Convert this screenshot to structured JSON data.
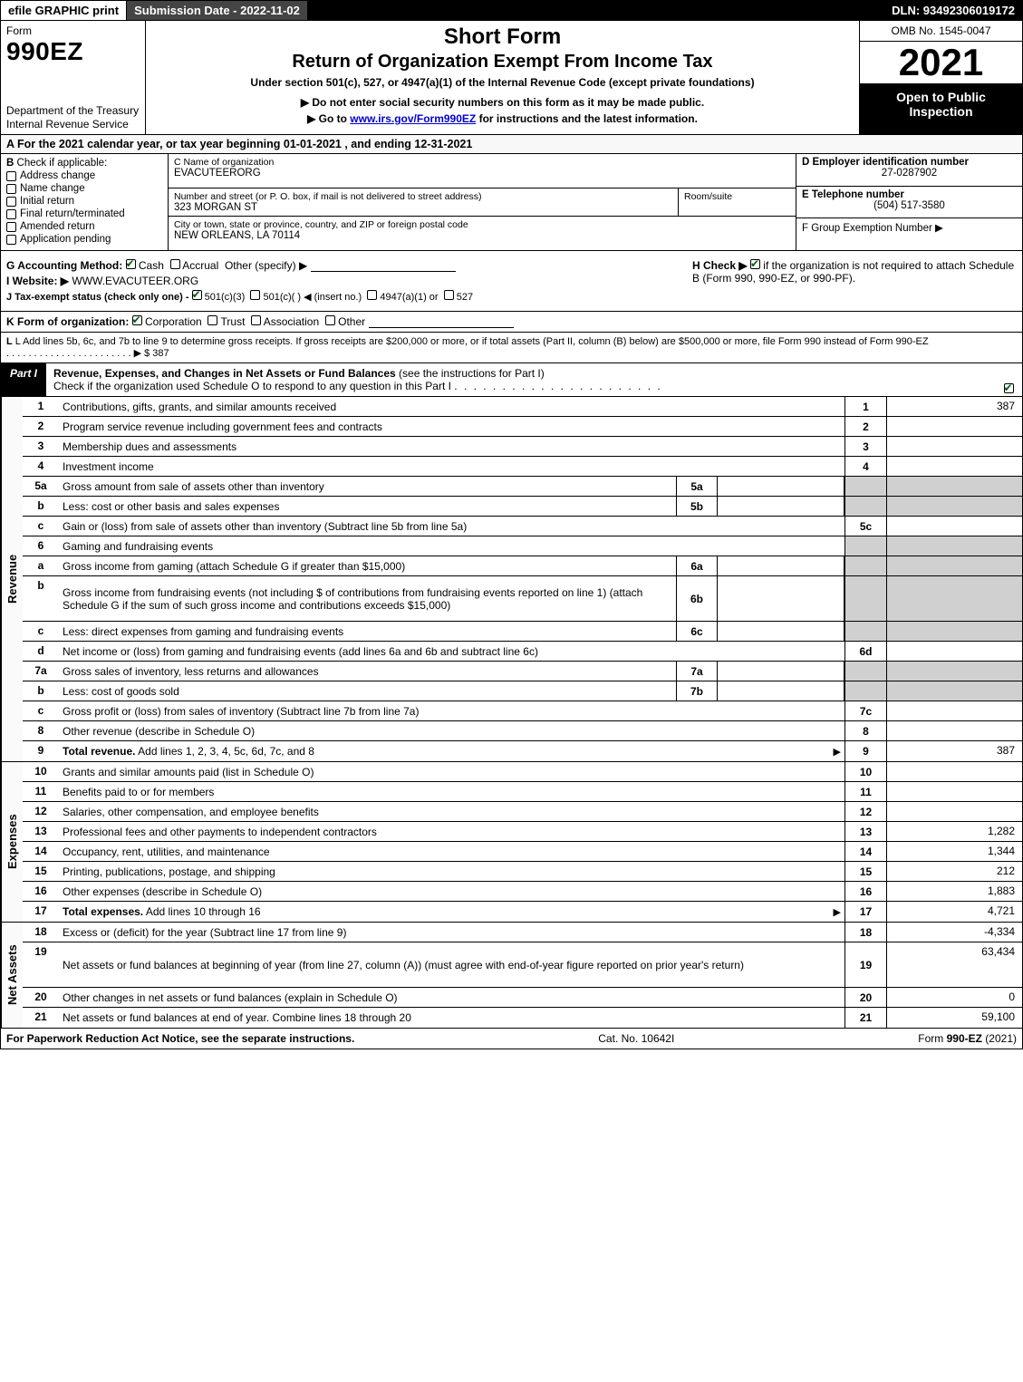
{
  "colors": {
    "black": "#000000",
    "white": "#ffffff",
    "dark_gray": "#444444",
    "shade_gray": "#d0d0d0",
    "check_green": "#0a5c16",
    "link_blue": "#0000cc",
    "vert_bg": "#fafafa"
  },
  "typography": {
    "body_fontsize": 12,
    "form_no_fontsize": 28,
    "short_form_fontsize": 24,
    "main_title_fontsize": 20,
    "year_fontsize": 42,
    "small_fontsize": 11
  },
  "topbar": {
    "efile": "efile GRAPHIC print",
    "submission_label": "Submission Date - 2022-11-02",
    "dln": "DLN: 93492306019172"
  },
  "header": {
    "form_word": "Form",
    "form_no": "990EZ",
    "dept": "Department of the Treasury\nInternal Revenue Service",
    "short_form": "Short Form",
    "main_title": "Return of Organization Exempt From Income Tax",
    "subtitle": "Under section 501(c), 527, or 4947(a)(1) of the Internal Revenue Code (except private foundations)",
    "instr1": "▶ Do not enter social security numbers on this form as it may be made public.",
    "instr2_pre": "▶ Go to ",
    "instr2_link": "www.irs.gov/Form990EZ",
    "instr2_post": " for instructions and the latest information.",
    "omb": "OMB No. 1545-0047",
    "year": "2021",
    "inspection": "Open to Public Inspection"
  },
  "rowA": "A  For the 2021 calendar year, or tax year beginning 01-01-2021 , and ending 12-31-2021",
  "B": {
    "label": "B",
    "check_if": "Check if applicable:",
    "items": [
      {
        "label": "Address change",
        "checked": false
      },
      {
        "label": "Name change",
        "checked": false
      },
      {
        "label": "Initial return",
        "checked": false
      },
      {
        "label": "Final return/terminated",
        "checked": false
      },
      {
        "label": "Amended return",
        "checked": false
      },
      {
        "label": "Application pending",
        "checked": false
      }
    ]
  },
  "C": {
    "name_label": "C Name of organization",
    "name": "EVACUTEERORG",
    "street_label": "Number and street (or P. O. box, if mail is not delivered to street address)",
    "street": "323 MORGAN ST",
    "room_label": "Room/suite",
    "room": "",
    "city_label": "City or town, state or province, country, and ZIP or foreign postal code",
    "city": "NEW ORLEANS, LA  70114"
  },
  "D": {
    "ein_label": "D Employer identification number",
    "ein": "27-0287902",
    "phone_label": "E Telephone number",
    "phone": "(504) 517-3580",
    "group_label": "F Group Exemption Number  ▶",
    "group": ""
  },
  "G": {
    "label": "G Accounting Method:",
    "cash": "Cash",
    "accrual": "Accrual",
    "other": "Other (specify) ▶",
    "cash_checked": true,
    "accrual_checked": false
  },
  "H": {
    "text1": "H  Check ▶",
    "checked": true,
    "text2": "if the organization is not required to attach Schedule B (Form 990, 990-EZ, or 990-PF)."
  },
  "I": {
    "label": "I Website: ▶",
    "value": "WWW.EVACUTEER.ORG"
  },
  "J": {
    "pre": "J Tax-exempt status (check only one) -",
    "o1": "501(c)(3)",
    "o1_checked": true,
    "o2": "501(c)(  ) ◀ (insert no.)",
    "o3": "4947(a)(1) or",
    "o4": "527"
  },
  "K": {
    "pre": "K Form of organization:",
    "corp": "Corporation",
    "corp_checked": true,
    "trust": "Trust",
    "assoc": "Association",
    "other": "Other"
  },
  "L": {
    "text": "L Add lines 5b, 6c, and 7b to line 9 to determine gross receipts. If gross receipts are $200,000 or more, or if total assets (Part II, column (B) below) are $500,000 or more, file Form 990 instead of Form 990-EZ",
    "amount_label": "▶ $",
    "amount": "387"
  },
  "partI": {
    "tag": "Part I",
    "title1": "Revenue, Expenses, and Changes in Net Assets or Fund Balances",
    "title2": "(see the instructions for Part I)",
    "sub": "Check if the organization used Schedule O to respond to any question in this Part I",
    "checked": true
  },
  "sections": {
    "revenue": {
      "label": "Revenue",
      "rows": [
        {
          "n": "1",
          "d": "Contributions, gifts, grants, and similar amounts received",
          "ref": "1",
          "amt": "387"
        },
        {
          "n": "2",
          "d": "Program service revenue including government fees and contracts",
          "ref": "2",
          "amt": ""
        },
        {
          "n": "3",
          "d": "Membership dues and assessments",
          "ref": "3",
          "amt": ""
        },
        {
          "n": "4",
          "d": "Investment income",
          "ref": "4",
          "amt": ""
        },
        {
          "n": "5a",
          "d": "Gross amount from sale of assets other than inventory",
          "ib": "5a",
          "iv": "",
          "shade": true
        },
        {
          "n": "b",
          "d": "Less: cost or other basis and sales expenses",
          "ib": "5b",
          "iv": "",
          "shade": true
        },
        {
          "n": "c",
          "d": "Gain or (loss) from sale of assets other than inventory (Subtract line 5b from line 5a)",
          "ref": "5c",
          "amt": ""
        },
        {
          "n": "6",
          "d": "Gaming and fundraising events",
          "shade": true,
          "noamt": true
        },
        {
          "n": "a",
          "d": "Gross income from gaming (attach Schedule G if greater than $15,000)",
          "ib": "6a",
          "iv": "",
          "shade": true
        },
        {
          "n": "b",
          "d": "Gross income from fundraising events (not including $                   of contributions from fundraising events reported on line 1) (attach Schedule G if the sum of such gross income and contributions exceeds $15,000)",
          "ib": "6b",
          "iv": "",
          "shade": true,
          "tall": true
        },
        {
          "n": "c",
          "d": "Less: direct expenses from gaming and fundraising events",
          "ib": "6c",
          "iv": "",
          "shade": true
        },
        {
          "n": "d",
          "d": "Net income or (loss) from gaming and fundraising events (add lines 6a and 6b and subtract line 6c)",
          "ref": "6d",
          "amt": ""
        },
        {
          "n": "7a",
          "d": "Gross sales of inventory, less returns and allowances",
          "ib": "7a",
          "iv": "",
          "shade": true
        },
        {
          "n": "b",
          "d": "Less: cost of goods sold",
          "ib": "7b",
          "iv": "",
          "shade": true
        },
        {
          "n": "c",
          "d": "Gross profit or (loss) from sales of inventory (Subtract line 7b from line 7a)",
          "ref": "7c",
          "amt": ""
        },
        {
          "n": "8",
          "d": "Other revenue (describe in Schedule O)",
          "ref": "8",
          "amt": ""
        },
        {
          "n": "9",
          "d": "Total revenue. Add lines 1, 2, 3, 4, 5c, 6d, 7c, and 8",
          "ref": "9",
          "amt": "387",
          "bold": true,
          "arrow": true
        }
      ]
    },
    "expenses": {
      "label": "Expenses",
      "rows": [
        {
          "n": "10",
          "d": "Grants and similar amounts paid (list in Schedule O)",
          "ref": "10",
          "amt": ""
        },
        {
          "n": "11",
          "d": "Benefits paid to or for members",
          "ref": "11",
          "amt": ""
        },
        {
          "n": "12",
          "d": "Salaries, other compensation, and employee benefits",
          "ref": "12",
          "amt": ""
        },
        {
          "n": "13",
          "d": "Professional fees and other payments to independent contractors",
          "ref": "13",
          "amt": "1,282"
        },
        {
          "n": "14",
          "d": "Occupancy, rent, utilities, and maintenance",
          "ref": "14",
          "amt": "1,344"
        },
        {
          "n": "15",
          "d": "Printing, publications, postage, and shipping",
          "ref": "15",
          "amt": "212"
        },
        {
          "n": "16",
          "d": "Other expenses (describe in Schedule O)",
          "ref": "16",
          "amt": "1,883"
        },
        {
          "n": "17",
          "d": "Total expenses. Add lines 10 through 16",
          "ref": "17",
          "amt": "4,721",
          "bold": true,
          "arrow": true
        }
      ]
    },
    "netassets": {
      "label": "Net Assets",
      "rows": [
        {
          "n": "18",
          "d": "Excess or (deficit) for the year (Subtract line 17 from line 9)",
          "ref": "18",
          "amt": "-4,334"
        },
        {
          "n": "19",
          "d": "Net assets or fund balances at beginning of year (from line 27, column (A)) (must agree with end-of-year figure reported on prior year's return)",
          "ref": "19",
          "amt": "63,434",
          "tall": true
        },
        {
          "n": "20",
          "d": "Other changes in net assets or fund balances (explain in Schedule O)",
          "ref": "20",
          "amt": "0"
        },
        {
          "n": "21",
          "d": "Net assets or fund balances at end of year. Combine lines 18 through 20",
          "ref": "21",
          "amt": "59,100",
          "arrow": false
        }
      ]
    }
  },
  "footer": {
    "left": "For Paperwork Reduction Act Notice, see the separate instructions.",
    "center": "Cat. No. 10642I",
    "right_pre": "Form ",
    "right_form": "990-EZ",
    "right_post": " (2021)"
  }
}
